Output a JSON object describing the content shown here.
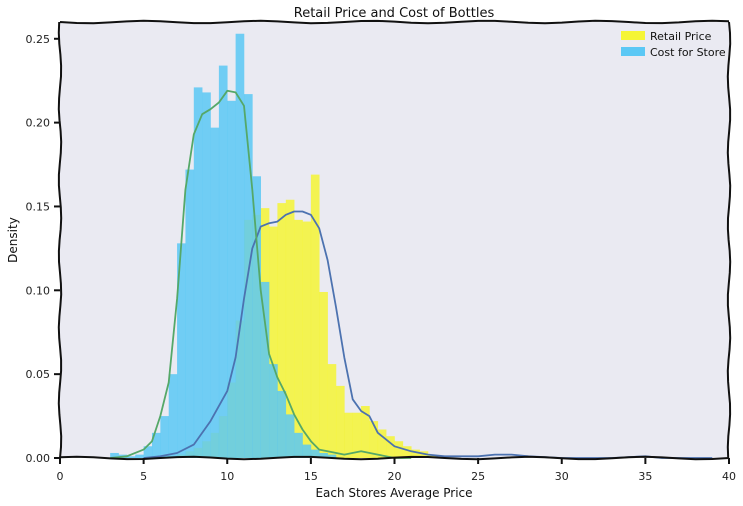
{
  "chart_data": {
    "type": "histogram",
    "title": "Retail Price and Cost of Bottles",
    "xlabel": "Each Stores Average Price",
    "ylabel": "Density",
    "xlim": [
      0,
      40
    ],
    "ylim": [
      0,
      0.26
    ],
    "xticks": [
      0,
      5,
      10,
      15,
      20,
      25,
      30,
      35,
      40
    ],
    "yticks": [
      0.0,
      0.05,
      0.1,
      0.15,
      0.2,
      0.25
    ],
    "xtick_labels": [
      "0",
      "5",
      "10",
      "15",
      "20",
      "25",
      "30",
      "35",
      "40"
    ],
    "ytick_labels": [
      "0.00",
      "0.05",
      "0.10",
      "0.15",
      "0.20",
      "0.25"
    ],
    "legend_position": "top-right",
    "grid": false,
    "background": "#eaeaf2",
    "series": [
      {
        "name": "Retail Price",
        "color": "#f5f535",
        "kde_color": "#4c72b0",
        "bins": [
          [
            6.5,
            7.0,
            0.001
          ],
          [
            7.0,
            7.5,
            0.002
          ],
          [
            7.5,
            8.0,
            0.004
          ],
          [
            8.0,
            8.5,
            0.006
          ],
          [
            8.5,
            9.0,
            0.01
          ],
          [
            9.0,
            9.5,
            0.015
          ],
          [
            9.5,
            10.0,
            0.025
          ],
          [
            10.0,
            10.5,
            0.045
          ],
          [
            10.5,
            11.0,
            0.082
          ],
          [
            11.0,
            11.5,
            0.142
          ],
          [
            11.5,
            12.0,
            0.145
          ],
          [
            12.0,
            12.5,
            0.149
          ],
          [
            12.5,
            13.0,
            0.138
          ],
          [
            13.0,
            13.5,
            0.152
          ],
          [
            13.5,
            14.0,
            0.154
          ],
          [
            14.0,
            14.5,
            0.142
          ],
          [
            14.5,
            15.0,
            0.141
          ],
          [
            15.0,
            15.5,
            0.169
          ],
          [
            15.5,
            16.0,
            0.099
          ],
          [
            16.0,
            16.5,
            0.056
          ],
          [
            16.5,
            17.0,
            0.043
          ],
          [
            17.0,
            17.5,
            0.027
          ],
          [
            17.5,
            18.0,
            0.027
          ],
          [
            18.0,
            18.5,
            0.031
          ],
          [
            18.5,
            19.0,
            0.022
          ],
          [
            19.0,
            19.5,
            0.017
          ],
          [
            19.5,
            20.0,
            0.013
          ],
          [
            20.0,
            20.5,
            0.01
          ],
          [
            20.5,
            21.0,
            0.007
          ],
          [
            21.0,
            21.5,
            0.005
          ],
          [
            21.5,
            22.0,
            0.004
          ],
          [
            22.0,
            22.5,
            0.002
          ]
        ],
        "kde": [
          [
            5,
            0.0
          ],
          [
            6,
            0.001
          ],
          [
            7,
            0.003
          ],
          [
            8,
            0.008
          ],
          [
            9,
            0.022
          ],
          [
            10,
            0.04
          ],
          [
            10.5,
            0.06
          ],
          [
            11,
            0.095
          ],
          [
            11.5,
            0.125
          ],
          [
            12,
            0.138
          ],
          [
            12.5,
            0.14
          ],
          [
            13,
            0.141
          ],
          [
            13.5,
            0.145
          ],
          [
            14,
            0.147
          ],
          [
            14.5,
            0.147
          ],
          [
            15,
            0.145
          ],
          [
            15.5,
            0.137
          ],
          [
            16,
            0.118
          ],
          [
            16.5,
            0.09
          ],
          [
            17,
            0.06
          ],
          [
            17.5,
            0.035
          ],
          [
            18,
            0.028
          ],
          [
            18.5,
            0.025
          ],
          [
            19,
            0.015
          ],
          [
            20,
            0.007
          ],
          [
            21,
            0.004
          ],
          [
            22,
            0.002
          ],
          [
            23,
            0.001
          ],
          [
            24,
            0.001
          ],
          [
            25,
            0.001
          ],
          [
            26,
            0.002
          ],
          [
            27,
            0.002
          ],
          [
            28,
            0.001
          ],
          [
            30,
            0.0
          ],
          [
            33,
            0.0
          ],
          [
            35,
            0.001
          ],
          [
            36,
            0.0
          ],
          [
            39,
            0.0
          ]
        ]
      },
      {
        "name": "Cost for Store",
        "color": "#5bc8f5",
        "kde_color": "#55a868",
        "bins": [
          [
            3.0,
            3.5,
            0.003
          ],
          [
            3.5,
            4.0,
            0.002
          ],
          [
            4.0,
            4.5,
            0.001
          ],
          [
            4.5,
            5.0,
            0.002
          ],
          [
            5.0,
            5.5,
            0.007
          ],
          [
            5.5,
            6.0,
            0.015
          ],
          [
            6.0,
            6.5,
            0.025
          ],
          [
            6.5,
            7.0,
            0.05
          ],
          [
            7.0,
            7.5,
            0.128
          ],
          [
            7.5,
            8.0,
            0.172
          ],
          [
            8.0,
            8.5,
            0.221
          ],
          [
            8.5,
            9.0,
            0.218
          ],
          [
            9.0,
            9.5,
            0.197
          ],
          [
            9.5,
            10.0,
            0.234
          ],
          [
            10.0,
            10.5,
            0.213
          ],
          [
            10.5,
            11.0,
            0.253
          ],
          [
            11.0,
            11.5,
            0.217
          ],
          [
            11.5,
            12.0,
            0.168
          ],
          [
            12.0,
            12.5,
            0.105
          ],
          [
            12.5,
            13.0,
            0.056
          ],
          [
            13.0,
            13.5,
            0.04
          ],
          [
            13.5,
            14.0,
            0.026
          ],
          [
            14.0,
            14.5,
            0.015
          ],
          [
            14.5,
            15.0,
            0.008
          ],
          [
            15.0,
            15.5,
            0.005
          ],
          [
            15.5,
            16.0,
            0.003
          ],
          [
            16.0,
            16.5,
            0.002
          ]
        ],
        "kde": [
          [
            3.0,
            0.0
          ],
          [
            4,
            0.001
          ],
          [
            5,
            0.005
          ],
          [
            5.5,
            0.01
          ],
          [
            6,
            0.025
          ],
          [
            6.5,
            0.045
          ],
          [
            7,
            0.095
          ],
          [
            7.5,
            0.16
          ],
          [
            8,
            0.193
          ],
          [
            8.5,
            0.205
          ],
          [
            9,
            0.208
          ],
          [
            9.5,
            0.212
          ],
          [
            10,
            0.219
          ],
          [
            10.5,
            0.218
          ],
          [
            11,
            0.21
          ],
          [
            11.5,
            0.16
          ],
          [
            12,
            0.1
          ],
          [
            12.5,
            0.062
          ],
          [
            13,
            0.048
          ],
          [
            13.5,
            0.038
          ],
          [
            14,
            0.026
          ],
          [
            14.5,
            0.017
          ],
          [
            15,
            0.01
          ],
          [
            15.5,
            0.005
          ],
          [
            16,
            0.004
          ],
          [
            17,
            0.002
          ],
          [
            18,
            0.004
          ],
          [
            19,
            0.002
          ],
          [
            20,
            0.0
          ],
          [
            21,
            0.0
          ]
        ]
      }
    ]
  }
}
